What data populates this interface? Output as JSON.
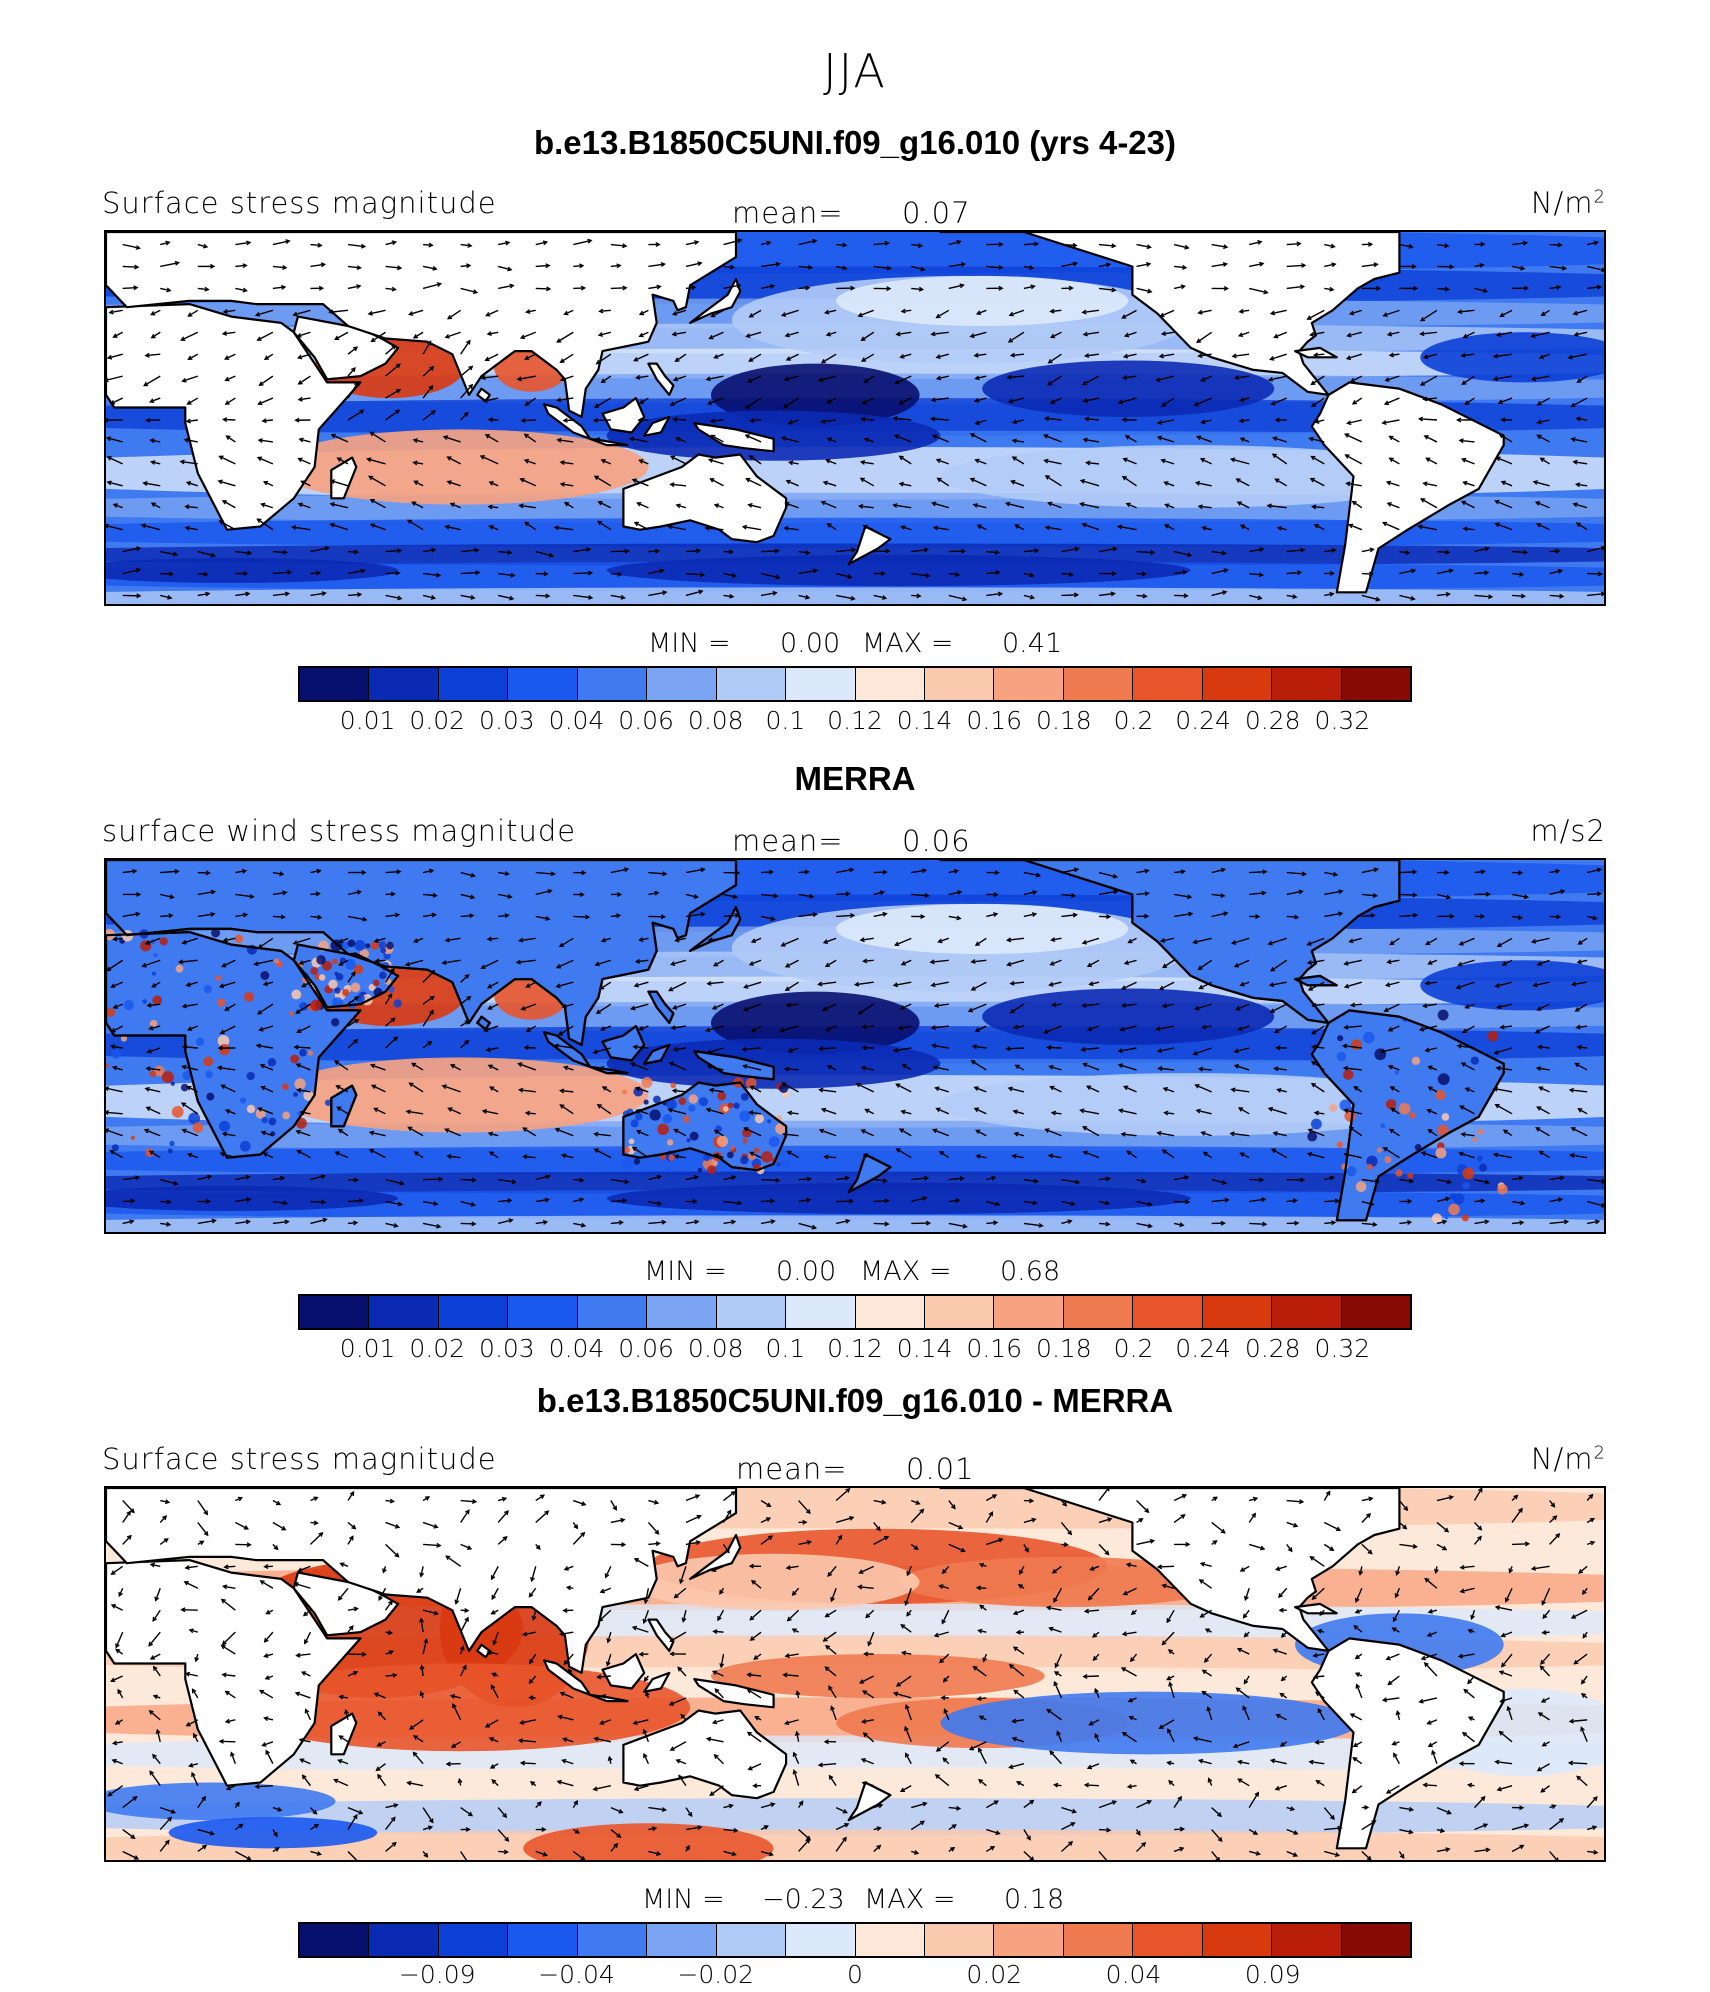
{
  "page_title": "JJA",
  "colors": {
    "scale": [
      "#08106f",
      "#0b2ab4",
      "#0c40d6",
      "#1a58ee",
      "#3f7af0",
      "#7ba4f3",
      "#b1cbf7",
      "#dce9fa",
      "#fde8d9",
      "#fbc9ae",
      "#f7a280",
      "#f07a50",
      "#e8552b",
      "#d9390f",
      "#b81e0a",
      "#870a05"
    ],
    "land": "#ffffff",
    "coast": "#000000"
  },
  "panels": [
    {
      "title": "b.e13.B1850C5UNI.f09_g16.010 (yrs 4-23)",
      "left_label": "Surface stress magnitude",
      "mean_label": "mean=",
      "mean_value": "0.07",
      "units": "N/m",
      "units_sup": "2",
      "min_label": "MIN =",
      "min_value": "0.00",
      "max_label": "MAX =",
      "max_value": "0.41",
      "colorbar_ticks": [
        "0.01",
        "0.02",
        "0.03",
        "0.04",
        "0.06",
        "0.08",
        "0.1",
        "0.12",
        "0.14",
        "0.16",
        "0.18",
        "0.2",
        "0.24",
        "0.28",
        "0.32"
      ],
      "field_type": "magnitude",
      "land_masked": true
    },
    {
      "title": "MERRA",
      "left_label": "surface wind stress magnitude",
      "mean_label": "mean=",
      "mean_value": "0.06",
      "units": "m/s2",
      "units_sup": "",
      "min_label": "MIN =",
      "min_value": "0.00",
      "max_label": "MAX =",
      "max_value": "0.68",
      "colorbar_ticks": [
        "0.01",
        "0.02",
        "0.03",
        "0.04",
        "0.06",
        "0.08",
        "0.1",
        "0.12",
        "0.14",
        "0.16",
        "0.18",
        "0.2",
        "0.24",
        "0.28",
        "0.32"
      ],
      "field_type": "magnitude",
      "land_masked": false
    },
    {
      "title": "b.e13.B1850C5UNI.f09_g16.010 - MERRA",
      "left_label": "Surface stress magnitude",
      "mean_label": "mean=",
      "mean_value": "0.01",
      "units": "N/m",
      "units_sup": "2",
      "min_label": "MIN =",
      "min_value": "−0.23",
      "max_label": "MAX =",
      "max_value": "0.18",
      "colorbar_ticks": [
        "−0.09",
        "−0.04",
        "−0.02",
        "0",
        "0.02",
        "0.04",
        "0.09"
      ],
      "field_type": "difference",
      "land_masked": true
    }
  ]
}
